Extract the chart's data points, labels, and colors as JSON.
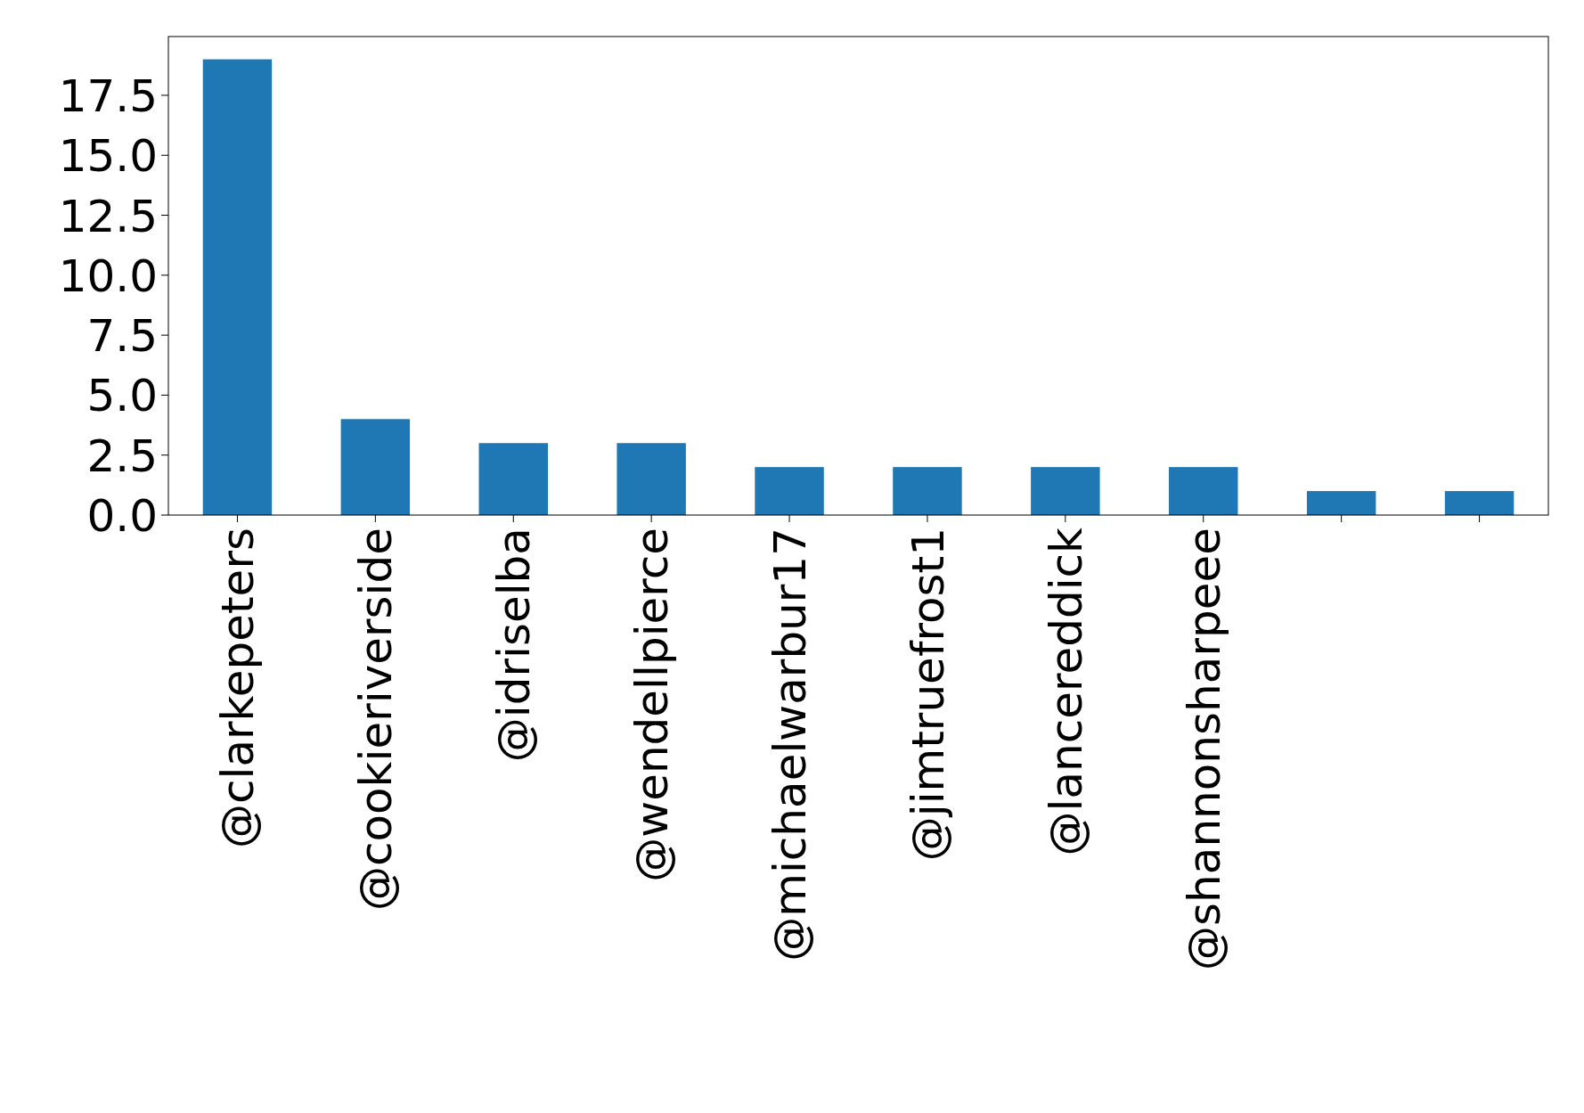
{
  "chart_data": {
    "type": "bar",
    "categories": [
      "@clarkepeters",
      "@cookieriverside",
      "@idriselba",
      "@wendellpierce",
      "@michaelwarbur17",
      "@jimtruefrost1",
      "@lancereddick",
      "@shannonsharpeee",
      null,
      null
    ],
    "values": [
      19,
      4,
      3,
      3,
      2,
      2,
      2,
      2,
      1,
      1
    ],
    "color": "#1f77b4",
    "ylim": [
      0,
      19.95
    ],
    "yticks": [
      {
        "value": 0,
        "label": "0.0"
      },
      {
        "value": 2.5,
        "label": "2.5"
      },
      {
        "value": 5,
        "label": "5.0"
      },
      {
        "value": 7.5,
        "label": "7.5"
      },
      {
        "value": 10,
        "label": "10.0"
      },
      {
        "value": 12.5,
        "label": "12.5"
      },
      {
        "value": 15,
        "label": "15.0"
      },
      {
        "value": 17.5,
        "label": "17.5"
      }
    ],
    "grid": false
  }
}
